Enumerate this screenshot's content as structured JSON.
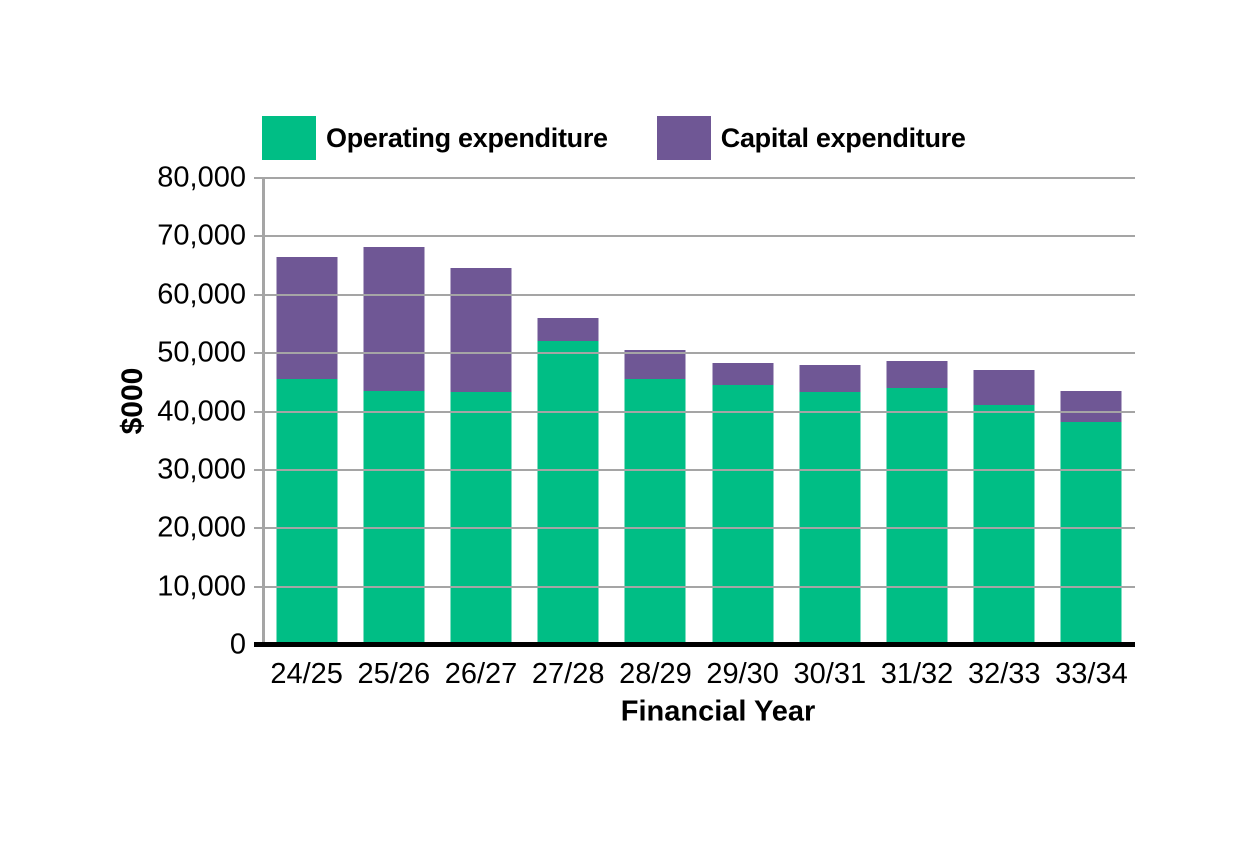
{
  "legend": [
    {
      "label": "Operating expenditure",
      "color": "#00BE85"
    },
    {
      "label": "Capital expenditure",
      "color": "#6F5795"
    }
  ],
  "axes": {
    "grid_color": "#A5A5A5",
    "baseline_color": "#000000"
  },
  "chart_data": {
    "type": "bar",
    "stacked": true,
    "title": "",
    "xlabel": "Financial Year",
    "ylabel": "$000",
    "categories": [
      "24/25",
      "25/26",
      "26/27",
      "27/28",
      "28/29",
      "29/30",
      "30/31",
      "31/32",
      "32/33",
      "33/34"
    ],
    "series": [
      {
        "name": "Operating expenditure",
        "color": "#00BE85",
        "values": [
          45500,
          43600,
          43300,
          52000,
          45500,
          44600,
          43400,
          44000,
          41100,
          38200
        ]
      },
      {
        "name": "Capital expenditure",
        "color": "#6F5795",
        "values": [
          21000,
          24500,
          21300,
          4100,
          5100,
          3700,
          4500,
          4600,
          6000,
          5400
        ]
      }
    ],
    "totals": [
      66500,
      68100,
      64600,
      56100,
      50600,
      48300,
      47900,
      48600,
      47100,
      43600
    ],
    "ylim": [
      0,
      80000
    ],
    "ytick_step": 10000,
    "yticklabels": [
      "0",
      "10,000",
      "20,000",
      "30,000",
      "40,000",
      "50,000",
      "60,000",
      "70,000",
      "80,000"
    ],
    "grid": true,
    "legend_position": "top"
  }
}
